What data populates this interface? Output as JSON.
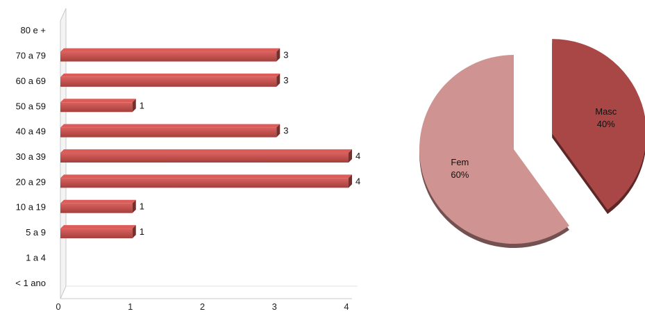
{
  "chart_data": [
    {
      "type": "bar",
      "orientation": "horizontal",
      "categories": [
        "80 e +",
        "70 a 79",
        "60 a 69",
        "50 a 59",
        "40 a 49",
        "30 a 39",
        "20 a 29",
        "10 a 19",
        "5 a 9",
        "1 a 4",
        "< 1 ano"
      ],
      "values": [
        null,
        3,
        3,
        1,
        3,
        4,
        4,
        1,
        1,
        null,
        null
      ],
      "xlim": [
        0,
        4
      ],
      "xticks": [
        "0",
        "1",
        "2",
        "3",
        "4"
      ],
      "data_labels": true,
      "bar_color": "#c0504d",
      "three_d": true,
      "grid": false
    },
    {
      "type": "pie",
      "labels": [
        "Masc",
        "Fem"
      ],
      "values": [
        40,
        60
      ],
      "display_labels": [
        "40%",
        "60%"
      ],
      "colors": [
        "#a84745",
        "#cf9492"
      ],
      "exploded": "Masc",
      "three_d": true
    }
  ]
}
